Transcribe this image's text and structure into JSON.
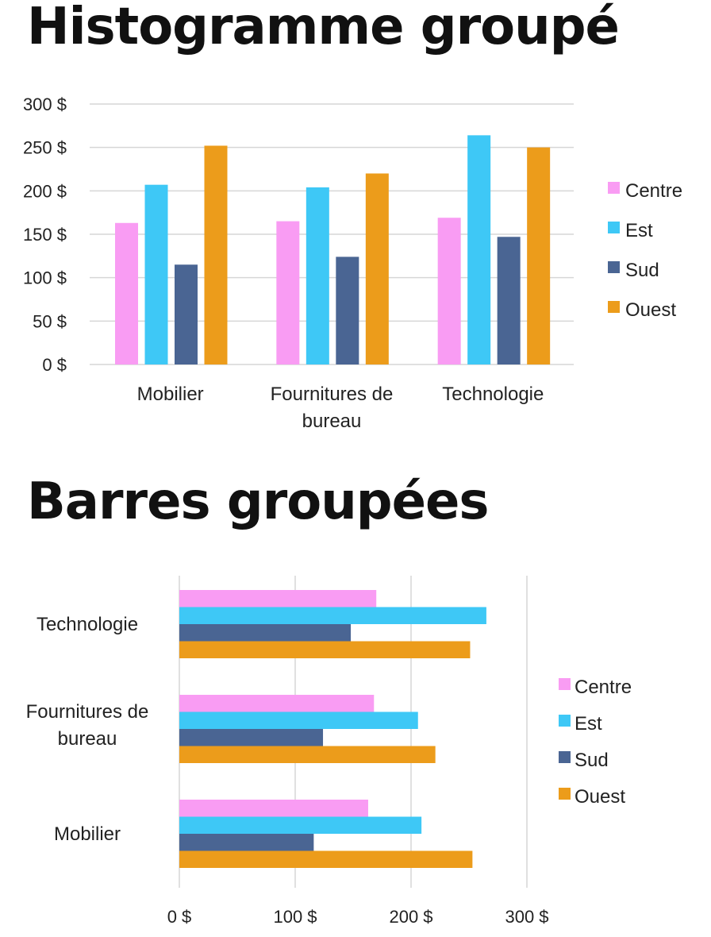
{
  "chart_data": [
    {
      "type": "bar",
      "orientation": "vertical",
      "title": "Histogramme groupé",
      "categories": [
        "Mobilier",
        "Fournitures de bureau",
        "Technologie"
      ],
      "series": [
        {
          "name": "Centre",
          "color": "#f99cf3",
          "values": [
            163,
            165,
            169
          ]
        },
        {
          "name": "Est",
          "color": "#3ec8f6",
          "values": [
            207,
            204,
            264
          ]
        },
        {
          "name": "Sud",
          "color": "#4a6593",
          "values": [
            115,
            124,
            147
          ]
        },
        {
          "name": "Ouest",
          "color": "#ec9c1b",
          "values": [
            252,
            220,
            250
          ]
        }
      ],
      "yticks": [
        "0 $",
        "50 $",
        "100 $",
        "150 $",
        "200 $",
        "250 $",
        "300 $"
      ],
      "ylim": [
        0,
        300
      ],
      "grid": true,
      "legend": "right"
    },
    {
      "type": "bar",
      "orientation": "horizontal",
      "title": "Barres groupées",
      "categories": [
        "Mobilier",
        "Fournitures de bureau",
        "Technologie"
      ],
      "series": [
        {
          "name": "Centre",
          "color": "#f99cf3",
          "values": [
            163,
            168,
            170
          ]
        },
        {
          "name": "Est",
          "color": "#3ec8f6",
          "values": [
            209,
            206,
            265
          ]
        },
        {
          "name": "Sud",
          "color": "#4a6593",
          "values": [
            116,
            124,
            148
          ]
        },
        {
          "name": "Ouest",
          "color": "#ec9c1b",
          "values": [
            253,
            221,
            251
          ]
        }
      ],
      "xticks": [
        "0 $",
        "100 $",
        "200 $",
        "300 $"
      ],
      "xlim": [
        0,
        300
      ],
      "grid": true,
      "legend": "right"
    }
  ]
}
